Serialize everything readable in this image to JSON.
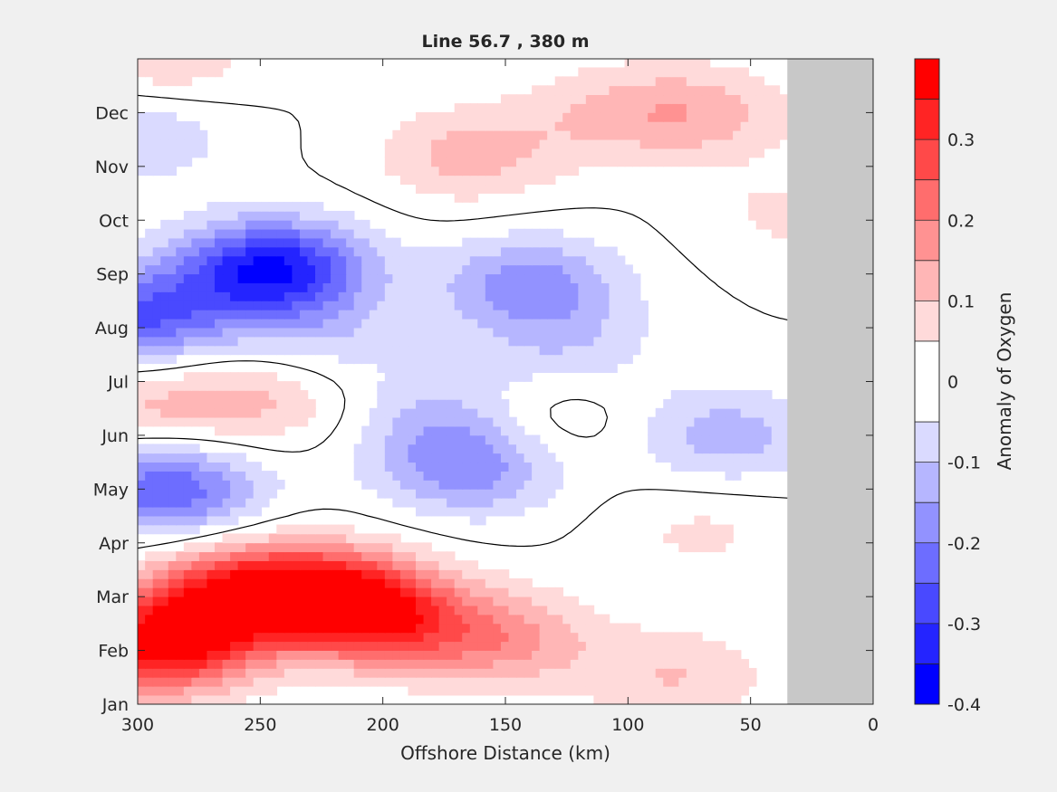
{
  "chart_data": {
    "type": "heatmap",
    "title": "Line 56.7 , 380 m",
    "xlabel": "Offshore Distance (km)",
    "ylabel": "",
    "xlim": [
      300,
      0
    ],
    "x_ticks": [
      300,
      250,
      200,
      150,
      100,
      50,
      0
    ],
    "ylim": [
      0,
      12
    ],
    "y_ticks": [
      {
        "value": 0,
        "label": "Jan"
      },
      {
        "value": 1,
        "label": "Feb"
      },
      {
        "value": 2,
        "label": "Mar"
      },
      {
        "value": 3,
        "label": "Apr"
      },
      {
        "value": 4,
        "label": "May"
      },
      {
        "value": 5,
        "label": "Jun"
      },
      {
        "value": 6,
        "label": "Jul"
      },
      {
        "value": 7,
        "label": "Aug"
      },
      {
        "value": 8,
        "label": "Sep"
      },
      {
        "value": 9,
        "label": "Oct"
      },
      {
        "value": 10,
        "label": "Nov"
      },
      {
        "value": 11,
        "label": "Dec"
      }
    ],
    "colorbar": {
      "label": "Anomaly of Oxygen",
      "range": [
        -0.4,
        0.4
      ],
      "levels": [
        -0.4,
        -0.35,
        -0.3,
        -0.25,
        -0.2,
        -0.15,
        -0.1,
        -0.05,
        0.05,
        0.1,
        0.15,
        0.2,
        0.25,
        0.3,
        0.35,
        0.4
      ],
      "ticks": [
        {
          "value": 0.3,
          "label": "0.3"
        },
        {
          "value": 0.2,
          "label": "0.2"
        },
        {
          "value": 0.1,
          "label": "0.1"
        },
        {
          "value": 0,
          "label": "0"
        },
        {
          "value": -0.1,
          "label": "-0.1"
        },
        {
          "value": -0.2,
          "label": "-0.2"
        },
        {
          "value": -0.3,
          "label": "-0.3"
        },
        {
          "value": -0.4,
          "label": "-0.4"
        }
      ],
      "colors": [
        "#0000ff",
        "#2424ff",
        "#4949ff",
        "#6d6dff",
        "#9292ff",
        "#b6b6ff",
        "#dadaff",
        "#ffffff",
        "#ffdada",
        "#ffb6b6",
        "#ff9292",
        "#ff6d6d",
        "#ff4949",
        "#ff2424",
        "#ff0000"
      ]
    },
    "no_data_region": {
      "x_from": 35,
      "x_to": 0,
      "color": "#c8c8c8"
    },
    "zero_contour": true,
    "anomaly_features": [
      {
        "x": 290,
        "y": 1.1,
        "value": 0.38
      },
      {
        "x": 260,
        "y": 2.1,
        "value": 0.29
      },
      {
        "x": 220,
        "y": 2.0,
        "value": 0.33
      },
      {
        "x": 195,
        "y": 1.5,
        "value": 0.2
      },
      {
        "x": 150,
        "y": 1.2,
        "value": 0.15
      },
      {
        "x": 80,
        "y": 0.5,
        "value": 0.1
      },
      {
        "x": 70,
        "y": 3.2,
        "value": 0.06
      },
      {
        "x": 245,
        "y": 8.1,
        "value": -0.36
      },
      {
        "x": 300,
        "y": 7.2,
        "value": -0.25
      },
      {
        "x": 288,
        "y": 4.0,
        "value": -0.25
      },
      {
        "x": 140,
        "y": 7.8,
        "value": -0.18
      },
      {
        "x": 165,
        "y": 4.4,
        "value": -0.18
      },
      {
        "x": 175,
        "y": 5.4,
        "value": -0.1
      },
      {
        "x": 60,
        "y": 5.0,
        "value": -0.13
      },
      {
        "x": 125,
        "y": 6.6,
        "value": -0.08
      },
      {
        "x": 225,
        "y": 6.8,
        "value": -0.08
      },
      {
        "x": 300,
        "y": 10.6,
        "value": -0.1
      },
      {
        "x": 250,
        "y": 5.7,
        "value": 0.11
      },
      {
        "x": 298,
        "y": 5.5,
        "value": 0.1
      },
      {
        "x": 135,
        "y": 5.3,
        "value": 0.07
      },
      {
        "x": 165,
        "y": 10.2,
        "value": 0.12
      },
      {
        "x": 70,
        "y": 11.0,
        "value": 0.12
      },
      {
        "x": 290,
        "y": 12.0,
        "value": 0.1
      },
      {
        "x": 110,
        "y": 11.0,
        "value": 0.08
      },
      {
        "x": 35,
        "y": 9.1,
        "value": 0.06
      }
    ]
  }
}
